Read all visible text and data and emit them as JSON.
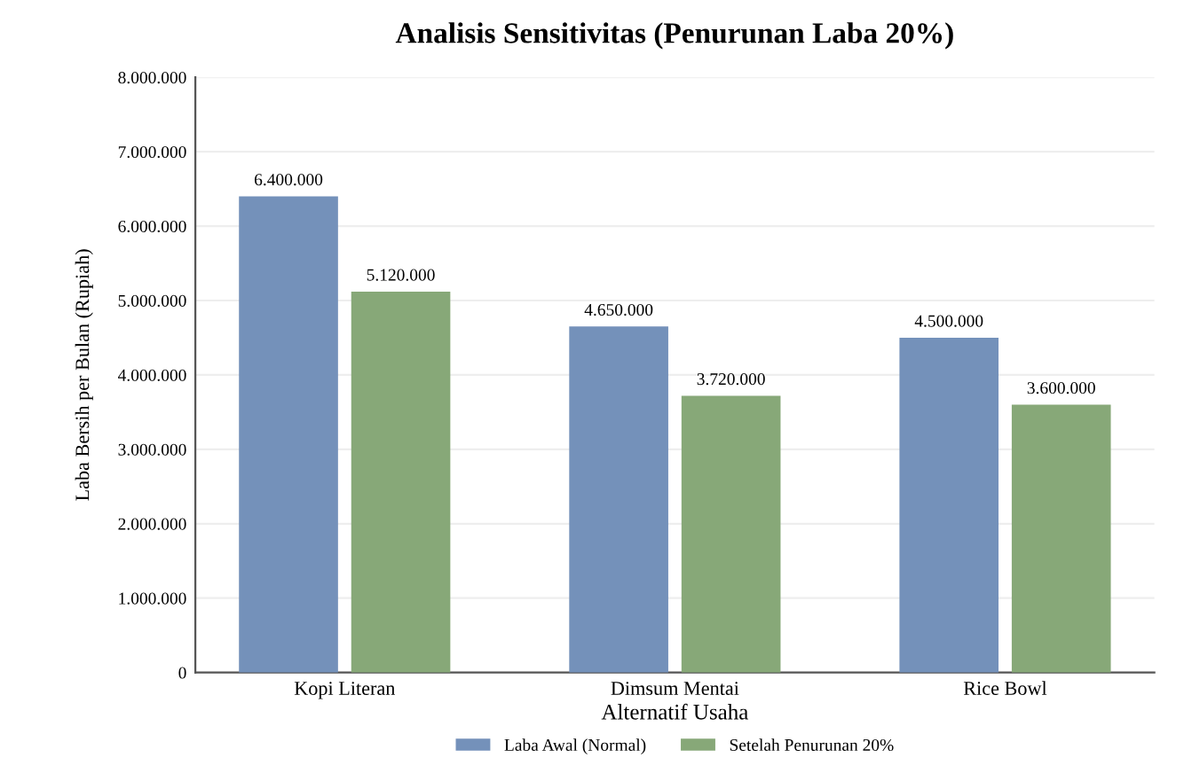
{
  "chart_data": {
    "type": "bar",
    "title": "Analisis Sensitivitas (Penurunan Laba 20%)",
    "xlabel": "Alternatif Usaha",
    "ylabel": "Laba Bersih per Bulan (Rupiah)",
    "categories": [
      "Kopi Literan",
      "Dimsum Mentai",
      "Rice Bowl"
    ],
    "series": [
      {
        "name": "Laba Awal (Normal)",
        "color": "#7491ba",
        "values": [
          6400000,
          4650000,
          4500000
        ],
        "value_labels": [
          "6.400.000",
          "4.650.000",
          "4.500.000"
        ]
      },
      {
        "name": "Setelah Penurunan 20%",
        "color": "#87a878",
        "values": [
          5120000,
          3720000,
          3600000
        ],
        "value_labels": [
          "5.120.000",
          "3.720.000",
          "3.600.000"
        ]
      }
    ],
    "ylim": [
      0,
      8000000
    ],
    "yticks": [
      {
        "value": 0,
        "label": "0"
      },
      {
        "value": 1000000,
        "label": "1.000.000"
      },
      {
        "value": 2000000,
        "label": "2.000.000"
      },
      {
        "value": 3000000,
        "label": "3.000.000"
      },
      {
        "value": 4000000,
        "label": "4.000.000"
      },
      {
        "value": 5000000,
        "label": "5.000.000"
      },
      {
        "value": 6000000,
        "label": "6.000.000"
      },
      {
        "value": 7000000,
        "label": "7.000.000"
      },
      {
        "value": 8000000,
        "label": "8.000.000"
      }
    ],
    "grid": "y",
    "legend": "bottom"
  }
}
